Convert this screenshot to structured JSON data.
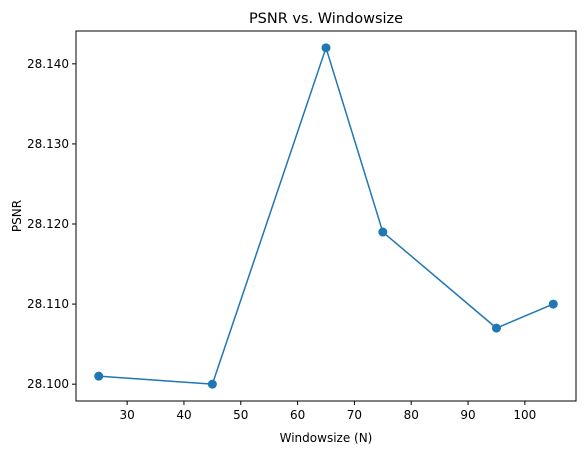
{
  "chart_data": {
    "type": "line",
    "title": "PSNR vs. Windowsize",
    "xlabel": "Windowsize (N)",
    "ylabel": "PSNR",
    "x": [
      25,
      45,
      65,
      75,
      95,
      105
    ],
    "series": [
      {
        "values": [
          28.101,
          28.1,
          28.142,
          28.119,
          28.107,
          28.11
        ],
        "color": "#1f77b4",
        "marker": "circle"
      }
    ],
    "xlim": [
      21,
      109
    ],
    "ylim": [
      28.0979,
      28.1441
    ],
    "xticks": [
      30,
      40,
      50,
      60,
      70,
      80,
      90,
      100
    ],
    "yticks": [
      28.1,
      28.11,
      28.12,
      28.13,
      28.14
    ],
    "ytick_labels": [
      "28.100",
      "28.110",
      "28.120",
      "28.130",
      "28.140"
    ],
    "grid": false
  }
}
